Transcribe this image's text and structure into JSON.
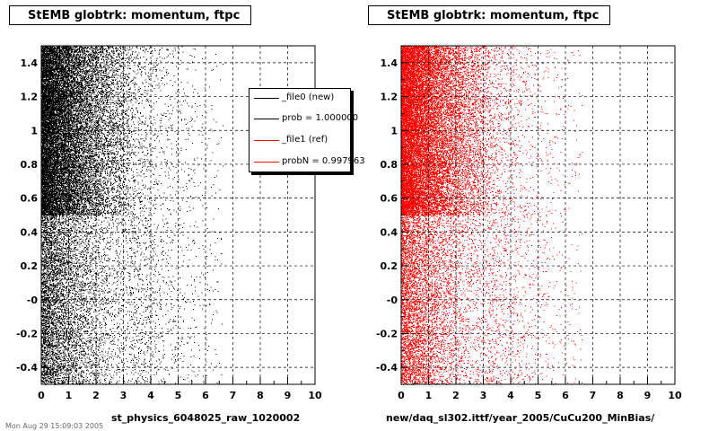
{
  "chart_data": [
    {
      "type": "scatter",
      "title": "StEMB globtrk: momentum, ftpc",
      "xlabel": "st_physics_6048025_raw_1020002",
      "ylabel": "",
      "xlim": [
        0,
        10
      ],
      "ylim": [
        -0.5,
        1.5
      ],
      "x_ticks": [
        "0",
        "1",
        "2",
        "3",
        "4",
        "5",
        "6",
        "7",
        "8",
        "9",
        "10"
      ],
      "y_ticks": [
        "-0.4",
        "-0.2",
        "-0",
        "0.2",
        "0.4",
        "0.6",
        "0.8",
        "1",
        "1.2",
        "1.4"
      ],
      "grid": true,
      "series": [
        {
          "name": "_file0 (new)",
          "color": "#000000",
          "density": "high at x<1, fading toward x=10; enhanced band y 0.5-1.5"
        }
      ],
      "legend": {
        "placement": "top-right",
        "entries": [
          {
            "label": "_file0 (new)",
            "color": "#000000"
          },
          {
            "label": "prob = 1.000000",
            "color": "#000000"
          },
          {
            "label": "_file1 (ref)",
            "color": "#ff0000"
          },
          {
            "label": "probN = 0.997963",
            "color": "#ff0000"
          }
        ]
      }
    },
    {
      "type": "scatter",
      "title": "StEMB globtrk: momentum, ftpc",
      "xlabel": "new/daq_sl302.ittf/year_2005/CuCu200_MinBias/",
      "ylabel": "",
      "xlim": [
        0,
        10
      ],
      "ylim": [
        -0.5,
        1.5
      ],
      "x_ticks": [
        "0",
        "1",
        "2",
        "3",
        "4",
        "5",
        "6",
        "7",
        "8",
        "9",
        "10"
      ],
      "y_ticks": [
        "-0.4",
        "-0.2",
        "-0",
        "0.2",
        "0.4",
        "0.6",
        "0.8",
        "1",
        "1.2",
        "1.4"
      ],
      "grid": true,
      "series": [
        {
          "name": "_file1 (ref)",
          "color": "#ff0000",
          "density": "high at x<1, fading toward x=10; enhanced band y 0.5-1.5"
        }
      ]
    }
  ],
  "footer": "Mon Aug 29 15:09:03 2005"
}
